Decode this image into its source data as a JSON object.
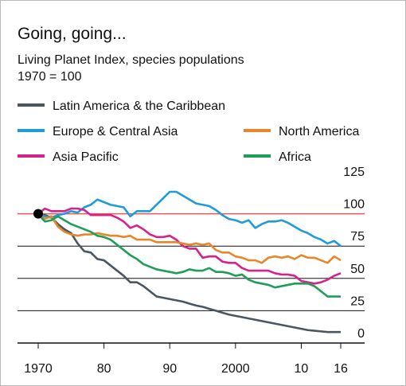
{
  "chart_data": {
    "type": "line",
    "title": "Going, going...",
    "subtitle": [
      "Living Planet Index, species populations",
      "1970 = 100"
    ],
    "x": [
      1970,
      1971,
      1972,
      1973,
      1974,
      1975,
      1976,
      1977,
      1978,
      1979,
      1980,
      1981,
      1982,
      1983,
      1984,
      1985,
      1986,
      1987,
      1988,
      1989,
      1990,
      1991,
      1992,
      1993,
      1994,
      1995,
      1996,
      1997,
      1998,
      1999,
      2000,
      2001,
      2002,
      2003,
      2004,
      2005,
      2006,
      2007,
      2008,
      2009,
      2010,
      2011,
      2012,
      2013,
      2014,
      2015,
      2016
    ],
    "series": [
      {
        "name": "Latin America & the Caribbean",
        "color": "#4a5661",
        "values": [
          100,
          99,
          97,
          92,
          88,
          85,
          77,
          71,
          70,
          65,
          64,
          60,
          56,
          52,
          47,
          47,
          44,
          40,
          36,
          35,
          34,
          33,
          32,
          30.5,
          29,
          28,
          26.5,
          25,
          23.5,
          22,
          21,
          20,
          19,
          18,
          17,
          16,
          15,
          14,
          13,
          12,
          11,
          10,
          9.5,
          9,
          8.5,
          8.5,
          8.5
        ]
      },
      {
        "name": "Europe & Central Asia",
        "color": "#1f9bd7",
        "values": [
          100,
          98,
          97,
          99,
          100,
          102,
          101,
          105,
          107,
          111,
          109,
          107,
          106,
          105,
          98,
          102,
          102,
          102,
          107,
          112,
          117,
          117,
          114,
          111,
          108,
          107,
          106,
          103,
          99,
          96,
          95,
          93,
          95,
          89,
          92,
          94,
          94,
          95,
          93,
          90,
          87,
          85,
          82,
          80,
          77,
          79,
          75
        ]
      },
      {
        "name": "Asia Pacific",
        "color": "#d6228a",
        "values": [
          100,
          104,
          102,
          102,
          102,
          104,
          104,
          103,
          99,
          99,
          99,
          99,
          97,
          94,
          89,
          91,
          88,
          84,
          82,
          82,
          83,
          80,
          75,
          73,
          73,
          66,
          67,
          67,
          63,
          62,
          62,
          58,
          56,
          56,
          56,
          56,
          54,
          53,
          53,
          52,
          48,
          47,
          46,
          47,
          49,
          52,
          54
        ]
      },
      {
        "name": "North America",
        "color": "#e8872a",
        "values": [
          100,
          96,
          98,
          90,
          86,
          84,
          83,
          84,
          84,
          85,
          84,
          83,
          83,
          82,
          83,
          80,
          80,
          80,
          78,
          78,
          78,
          78,
          77,
          76,
          77,
          76,
          77,
          72,
          70,
          70,
          67,
          66,
          64,
          64,
          62,
          66,
          67,
          66,
          67,
          65,
          68,
          66,
          66,
          64,
          62,
          67,
          64
        ]
      },
      {
        "name": "Africa",
        "color": "#1f9e5a",
        "values": [
          100,
          94,
          95,
          98,
          95,
          92,
          90,
          88,
          86,
          83,
          82,
          80,
          76,
          72,
          68,
          65,
          61,
          59,
          57,
          56,
          55,
          54,
          55,
          57,
          56,
          56,
          58,
          55,
          55,
          54,
          52,
          53,
          49,
          47,
          46,
          45,
          43,
          44,
          45,
          46,
          46,
          46,
          44,
          40,
          36,
          36,
          36
        ]
      }
    ],
    "xlim": [
      1970,
      2016
    ],
    "xticks": [
      1970,
      {
        "value": 1980,
        "label": "80"
      },
      {
        "value": 1990,
        "label": "90"
      },
      2000,
      {
        "value": 2010,
        "label": "10"
      },
      {
        "value": 2016,
        "label": "16"
      }
    ],
    "ylim": [
      0,
      125
    ],
    "yticks": [
      0,
      25,
      50,
      75,
      100,
      125
    ],
    "highlight_line": {
      "value": 100,
      "color": "#e05a5a"
    },
    "grid": true
  }
}
